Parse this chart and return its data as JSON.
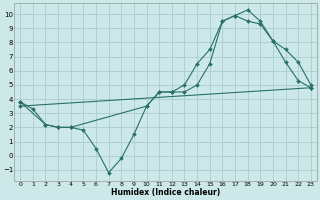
{
  "xlabel": "Humidex (Indice chaleur)",
  "background_color": "#cce8e8",
  "grid_color": "#aacccc",
  "line_color": "#2a7068",
  "xlim": [
    -0.5,
    23.5
  ],
  "ylim": [
    -1.8,
    10.8
  ],
  "xticks": [
    0,
    1,
    2,
    3,
    4,
    5,
    6,
    7,
    8,
    9,
    10,
    11,
    12,
    13,
    14,
    15,
    16,
    17,
    18,
    19,
    20,
    21,
    22,
    23
  ],
  "yticks": [
    -1,
    0,
    1,
    2,
    3,
    4,
    5,
    6,
    7,
    8,
    9,
    10
  ],
  "line1_x": [
    0,
    1,
    2,
    3,
    4,
    10,
    11,
    12,
    13,
    14,
    15,
    16,
    17,
    18,
    19,
    20,
    21,
    22,
    23
  ],
  "line1_y": [
    3.8,
    3.3,
    2.2,
    2.0,
    2.0,
    3.5,
    4.5,
    4.5,
    5.0,
    6.5,
    7.5,
    9.5,
    9.9,
    10.3,
    9.5,
    8.1,
    7.5,
    6.6,
    5.0
  ],
  "line2_x": [
    0,
    2,
    3,
    4,
    5,
    6,
    7,
    8,
    9,
    10,
    11,
    12,
    13,
    14,
    15,
    16,
    17,
    18,
    19,
    20,
    21,
    22,
    23
  ],
  "line2_y": [
    3.8,
    2.2,
    2.0,
    2.0,
    1.8,
    0.5,
    -1.2,
    -0.2,
    1.5,
    3.5,
    4.5,
    4.5,
    4.5,
    5.0,
    6.5,
    9.5,
    9.9,
    9.5,
    9.3,
    8.1,
    6.6,
    5.3,
    4.8
  ],
  "line3_x": [
    0,
    23
  ],
  "line3_y": [
    3.5,
    4.8
  ]
}
